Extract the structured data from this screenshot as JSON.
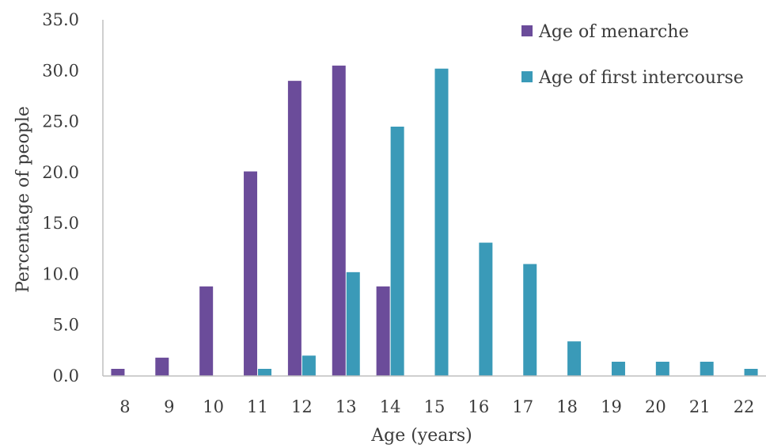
{
  "chart_data": {
    "type": "bar",
    "categories": [
      "8",
      "9",
      "10",
      "11",
      "12",
      "13",
      "14",
      "15",
      "16",
      "17",
      "18",
      "19",
      "20",
      "21",
      "22"
    ],
    "series": [
      {
        "name": "Age of menarche",
        "color": "#6b4c9a",
        "values": [
          0.7,
          1.8,
          8.8,
          20.1,
          29.0,
          30.5,
          8.8,
          0,
          0,
          0,
          0,
          0,
          0,
          0,
          0
        ]
      },
      {
        "name": "Age of first intercourse",
        "color": "#3a9ab8",
        "values": [
          0,
          0,
          0,
          0.7,
          2.0,
          10.2,
          24.5,
          30.2,
          13.1,
          11.0,
          3.4,
          1.4,
          1.4,
          1.4,
          0.7
        ]
      }
    ],
    "xlabel": "Age (years)",
    "ylabel": "Percentage of people",
    "ylim": [
      0,
      35
    ],
    "yticks": [
      "0.0",
      "5.0",
      "10.0",
      "15.0",
      "20.0",
      "25.0",
      "30.0",
      "35.0"
    ],
    "grid": false,
    "legend_position": "top-right"
  }
}
